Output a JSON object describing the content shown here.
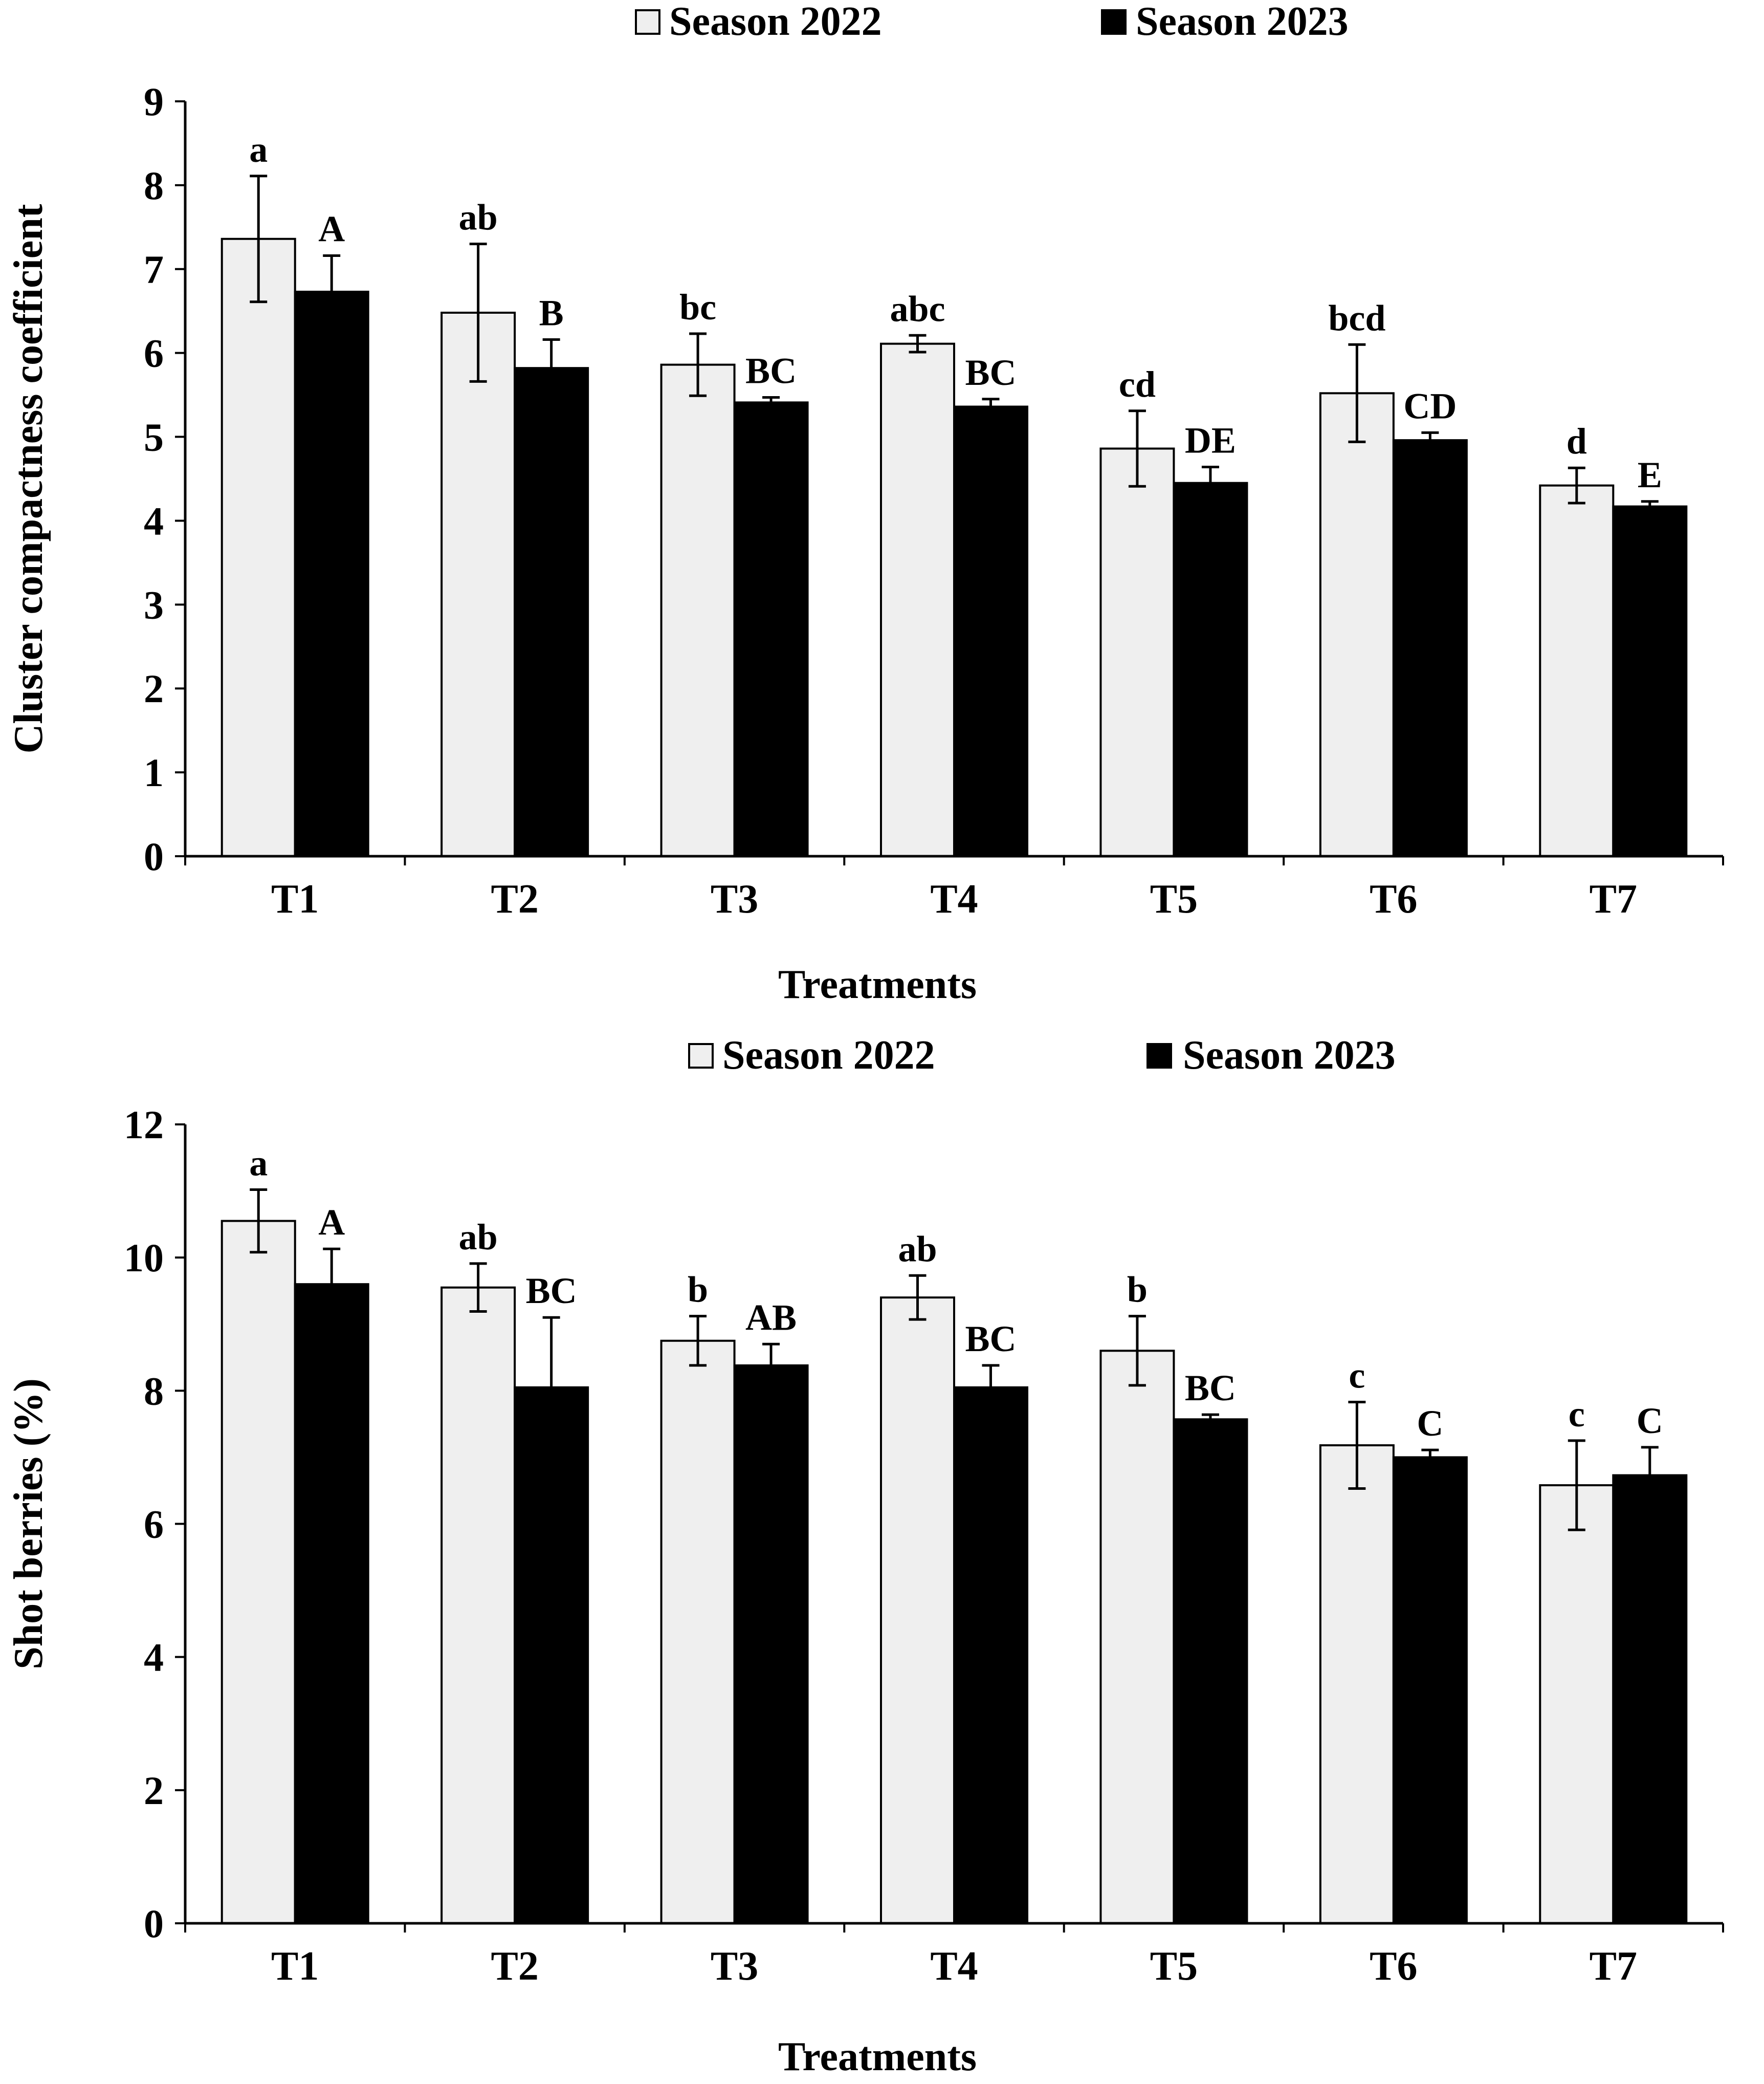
{
  "colors": {
    "season_2022": "#efefef",
    "season_2023": "#000000",
    "axis": "#000000"
  },
  "chart_data": [
    {
      "type": "bar",
      "categories": [
        "T1",
        "T2",
        "T3",
        "T4",
        "T5",
        "T6",
        "T7"
      ],
      "xlabel": "Treatments",
      "ylabel": "Cluster compactness coefficient",
      "ylim": [
        0,
        9
      ],
      "yticks": [
        0,
        1,
        2,
        3,
        4,
        5,
        6,
        7,
        8,
        9
      ],
      "legend": {
        "position": "top-center"
      },
      "grid": false,
      "series": [
        {
          "name": "Season 2022",
          "values": [
            7.36,
            6.48,
            5.86,
            6.11,
            4.86,
            5.52,
            4.42
          ],
          "errors": [
            0.75,
            0.82,
            0.37,
            0.1,
            0.45,
            0.58,
            0.21
          ],
          "labels": [
            "a",
            "ab",
            "bc",
            "abc",
            "cd",
            "bcd",
            "d"
          ]
        },
        {
          "name": "Season 2023",
          "values": [
            6.73,
            5.82,
            5.41,
            5.36,
            4.45,
            4.96,
            4.17
          ],
          "errors": [
            0.43,
            0.34,
            0.06,
            0.09,
            0.19,
            0.09,
            0.06
          ],
          "labels": [
            "A",
            "B",
            "BC",
            "BC",
            "DE",
            "CD",
            "E"
          ]
        }
      ]
    },
    {
      "type": "bar",
      "categories": [
        "T1",
        "T2",
        "T3",
        "T4",
        "T5",
        "T6",
        "T7"
      ],
      "xlabel": "Treatments",
      "ylabel": "Shot berries (%)",
      "ylim": [
        0,
        12
      ],
      "yticks": [
        0,
        2,
        4,
        6,
        8,
        10,
        12
      ],
      "legend": {
        "position": "top-center"
      },
      "grid": false,
      "series": [
        {
          "name": "Season 2022",
          "values": [
            10.55,
            9.55,
            8.75,
            9.4,
            8.6,
            7.18,
            6.58
          ],
          "errors": [
            0.47,
            0.36,
            0.37,
            0.33,
            0.52,
            0.65,
            0.67
          ],
          "labels": [
            "a",
            "ab",
            "b",
            "ab",
            "b",
            "c",
            "c"
          ]
        },
        {
          "name": "Season 2023",
          "values": [
            9.6,
            8.05,
            8.38,
            8.05,
            7.57,
            7.0,
            6.73
          ],
          "errors": [
            0.53,
            1.05,
            0.32,
            0.33,
            0.07,
            0.11,
            0.42
          ],
          "labels": [
            "A",
            "BC",
            "AB",
            "BC",
            "BC",
            "C",
            "C"
          ]
        }
      ]
    }
  ]
}
